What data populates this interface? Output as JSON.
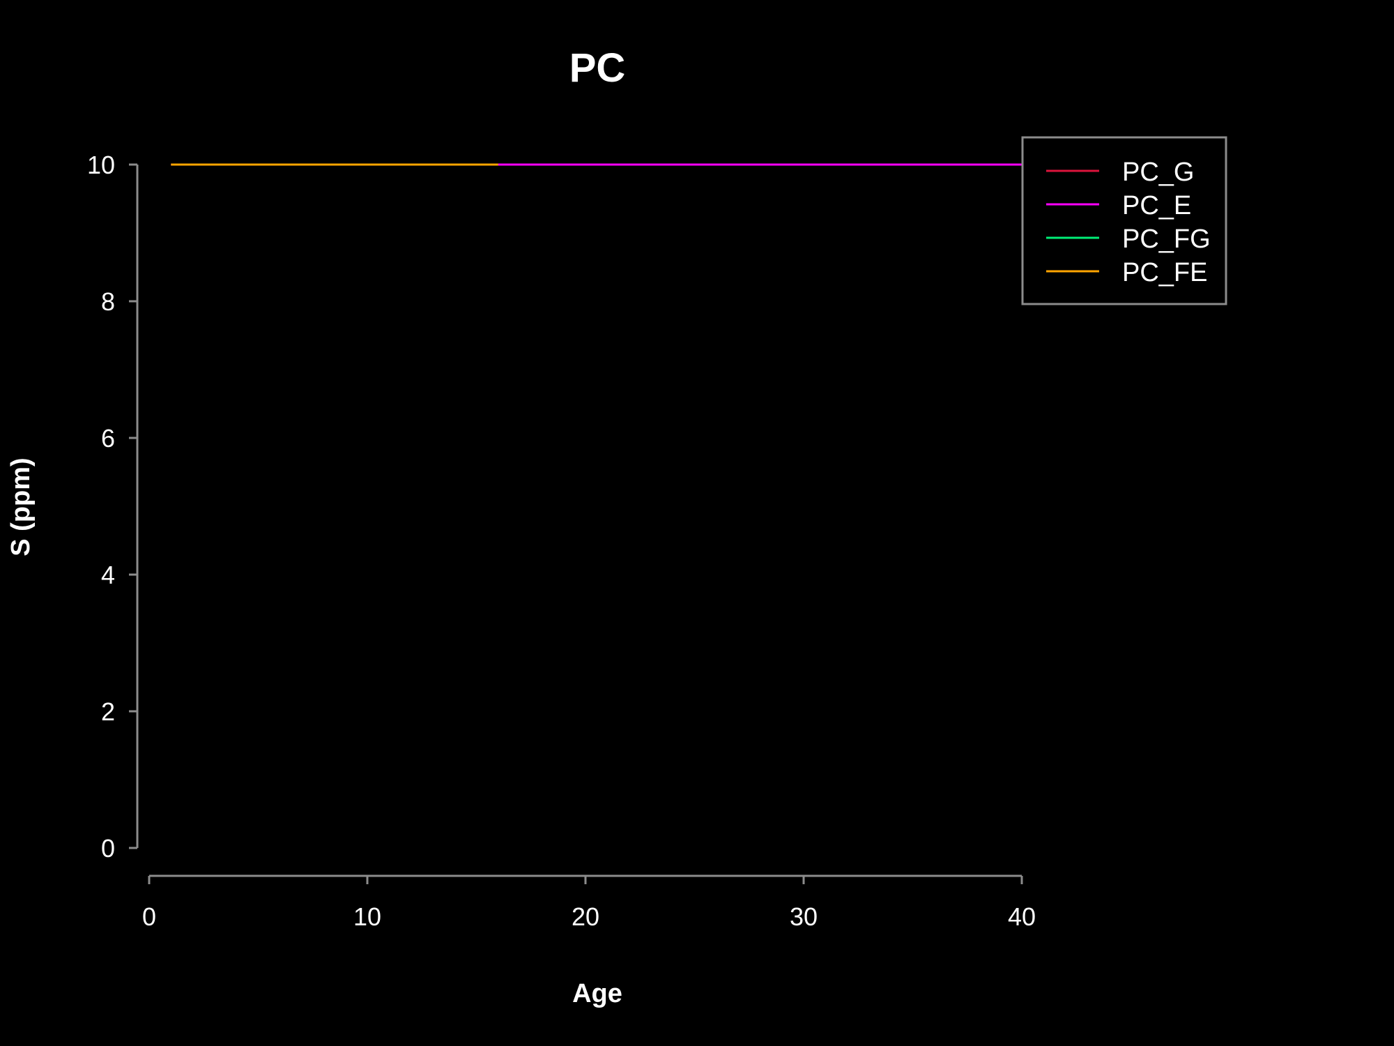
{
  "chart_data": {
    "type": "line",
    "title": "PC",
    "xlabel": "Age",
    "ylabel": "S (ppm)",
    "xlim": [
      0,
      40
    ],
    "ylim": [
      0,
      10
    ],
    "xticks": [
      0,
      10,
      20,
      30,
      40
    ],
    "yticks": [
      0,
      2,
      4,
      6,
      8,
      10
    ],
    "grid": false,
    "legend_position": "top-right",
    "series": [
      {
        "name": "PC_G",
        "color": "#dc143c",
        "x": [],
        "y": []
      },
      {
        "name": "PC_E",
        "color": "#ff00ff",
        "x": [
          1,
          40
        ],
        "y": [
          10,
          10
        ]
      },
      {
        "name": "PC_FG",
        "color": "#00ee76",
        "x": [],
        "y": []
      },
      {
        "name": "PC_FE",
        "color": "#ffa500",
        "x": [
          1,
          16
        ],
        "y": [
          10,
          10
        ]
      }
    ]
  },
  "style": {
    "background": "#000000",
    "axis_color": "#8c8c8c",
    "text_color": "#ffffff"
  }
}
